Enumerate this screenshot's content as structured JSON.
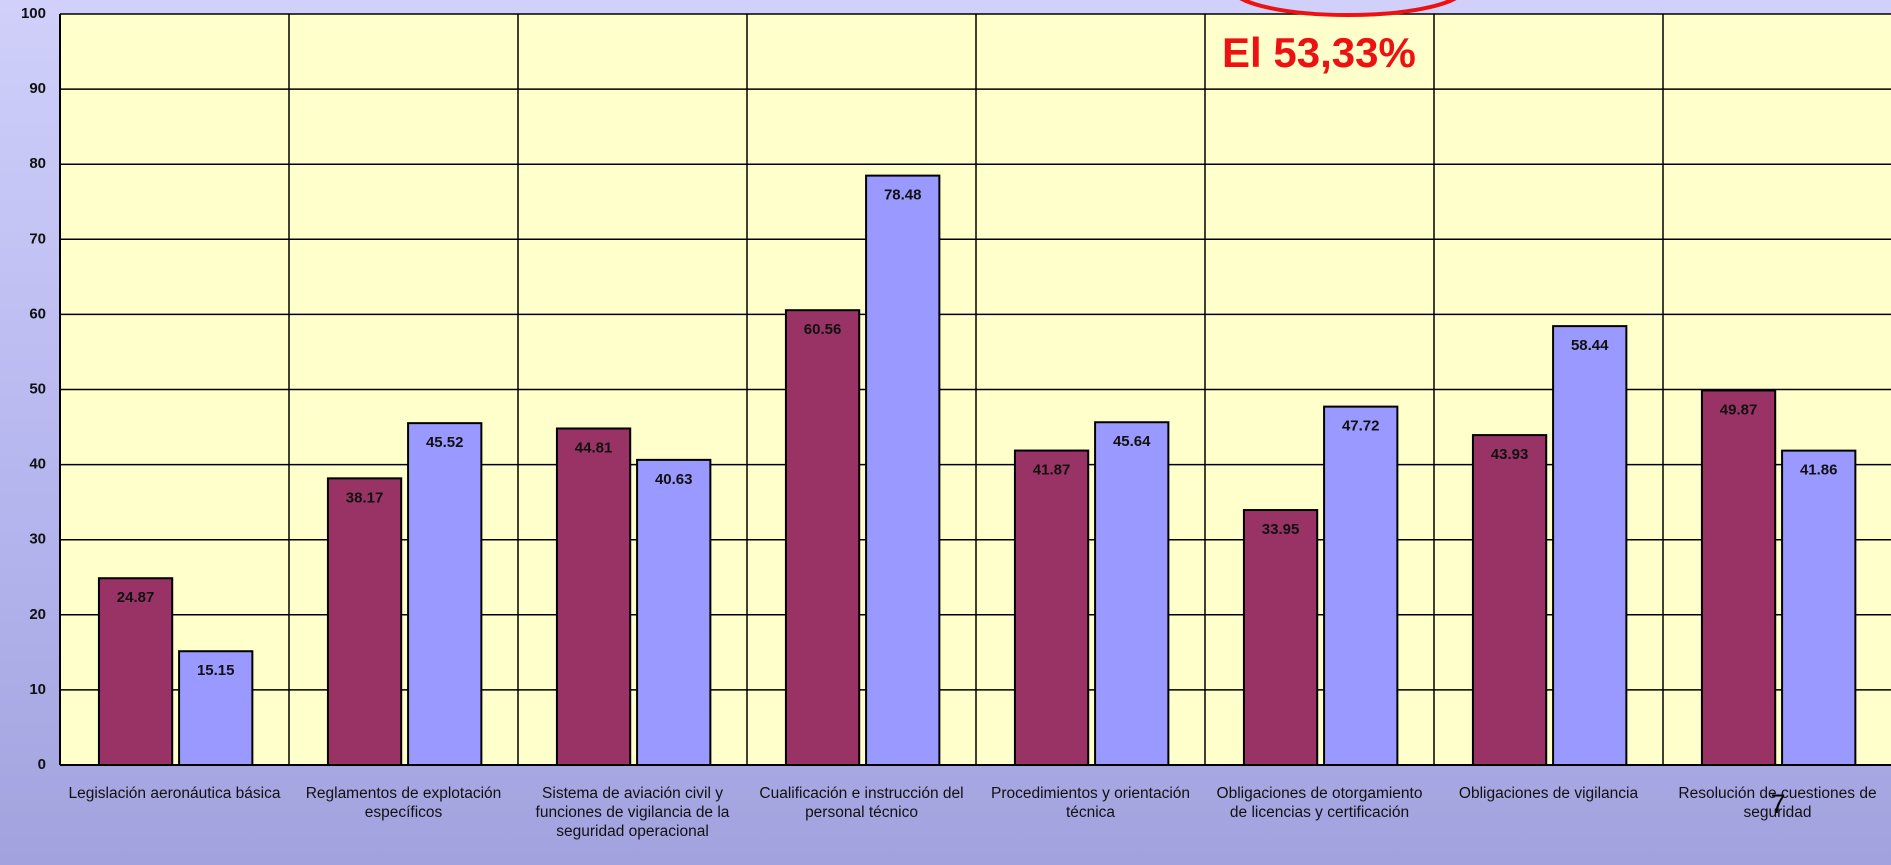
{
  "chart_data": {
    "type": "bar",
    "categories": [
      "Legislación aeronáutica básica",
      "Reglamentos de explotación específicos",
      "Sistema de aviación civil y funciones de vigilancia de la seguridad operacional",
      "Cualificación e instrucción del personal técnico",
      "Procedimientos y orientación técnica",
      "Obligaciones de otorgamiento de licencias y certificación",
      "Obligaciones de vigilancia",
      "Resolución de cuestiones de seguridad"
    ],
    "series": [
      {
        "color": "#993366",
        "values": [
          24.87,
          38.17,
          44.81,
          60.56,
          41.87,
          33.95,
          43.93,
          49.87
        ]
      },
      {
        "color": "#9999ff",
        "values": [
          15.15,
          45.52,
          40.63,
          78.48,
          45.64,
          47.72,
          58.44,
          41.86
        ]
      }
    ],
    "ylim": [
      0,
      100
    ],
    "yticks": [
      0,
      10,
      20,
      30,
      40,
      50,
      60,
      70,
      80,
      90,
      100
    ],
    "grid": true,
    "annotations": [
      "El 53,33%"
    ],
    "page_number": "7"
  }
}
